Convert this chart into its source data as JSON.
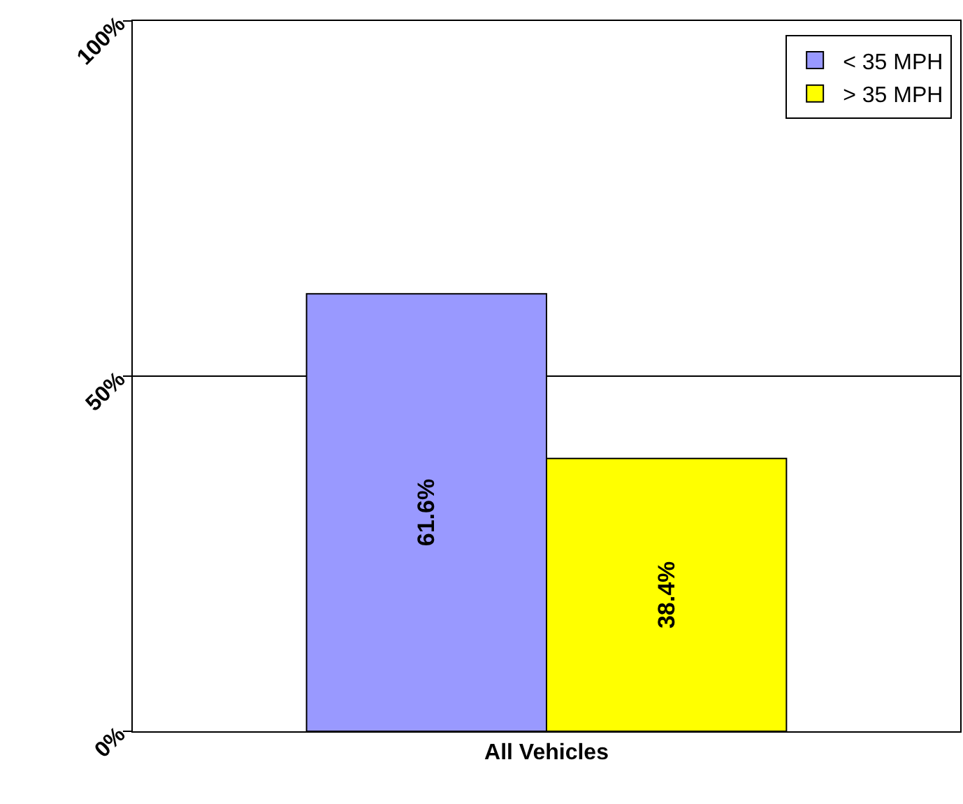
{
  "chart_data": {
    "type": "bar",
    "categories": [
      "All Vehicles"
    ],
    "series": [
      {
        "name": "< 35 MPH",
        "color": "#9999ff",
        "values": [
          61.6
        ],
        "value_labels": [
          "61.6%"
        ]
      },
      {
        "name": "> 35 MPH",
        "color": "#ffff00",
        "values": [
          38.4
        ],
        "value_labels": [
          "38.4%"
        ]
      }
    ],
    "ylim": [
      0,
      100
    ],
    "yticks": [
      {
        "value": 0,
        "label": "0%"
      },
      {
        "value": 50,
        "label": "50%"
      },
      {
        "value": 100,
        "label": "100%"
      }
    ],
    "grid": "y",
    "legend": "top right"
  }
}
